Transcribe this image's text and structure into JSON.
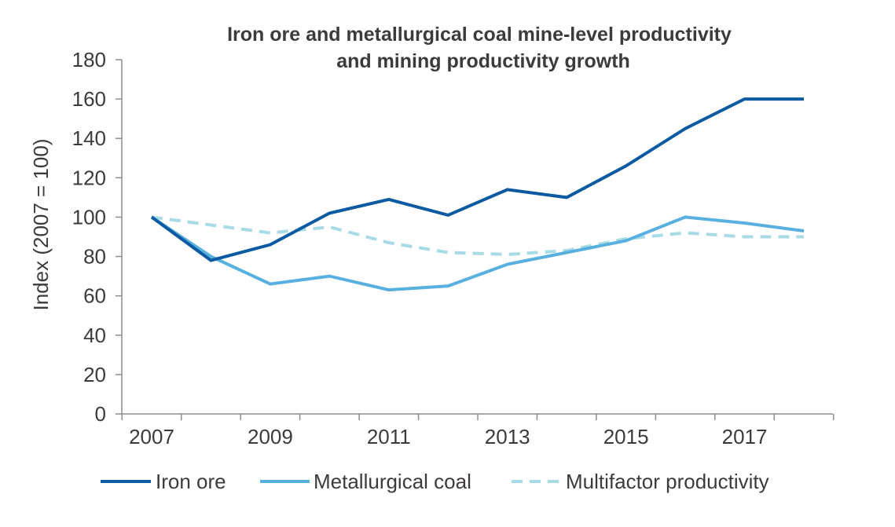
{
  "chart_data": {
    "type": "line",
    "title_lines": [
      "Iron ore and metallurgical coal mine-level productivity",
      "and mining productivity growth"
    ],
    "xlabel": "",
    "ylabel": "Index (2007 = 100)",
    "x": [
      2007,
      2008,
      2009,
      2010,
      2011,
      2012,
      2013,
      2014,
      2015,
      2016,
      2017,
      2018
    ],
    "xlim": [
      2007,
      2018
    ],
    "ylim": [
      0,
      180
    ],
    "y_ticks": [
      0,
      20,
      40,
      60,
      80,
      100,
      120,
      140,
      160,
      180
    ],
    "x_tick_labels": [
      "2007",
      "2009",
      "2011",
      "2013",
      "2015",
      "2017"
    ],
    "x_tick_values": [
      2007,
      2009,
      2011,
      2013,
      2015,
      2017
    ],
    "grid": false,
    "legend_position": "bottom",
    "series": [
      {
        "name": "Iron ore",
        "color": "#0b5aa2",
        "style": "solid",
        "values": [
          100,
          78,
          86,
          102,
          109,
          101,
          114,
          110,
          126,
          145,
          160,
          160
        ]
      },
      {
        "name": "Metallurgical coal",
        "color": "#58b0e0",
        "style": "solid",
        "values": [
          100,
          80,
          66,
          70,
          63,
          65,
          76,
          82,
          88,
          100,
          97,
          93
        ]
      },
      {
        "name": "Multifactor productivity",
        "color": "#a9dbe6",
        "style": "dashed",
        "values": [
          100,
          96,
          92,
          95,
          87,
          82,
          81,
          83,
          89,
          92,
          90,
          90
        ]
      }
    ]
  }
}
